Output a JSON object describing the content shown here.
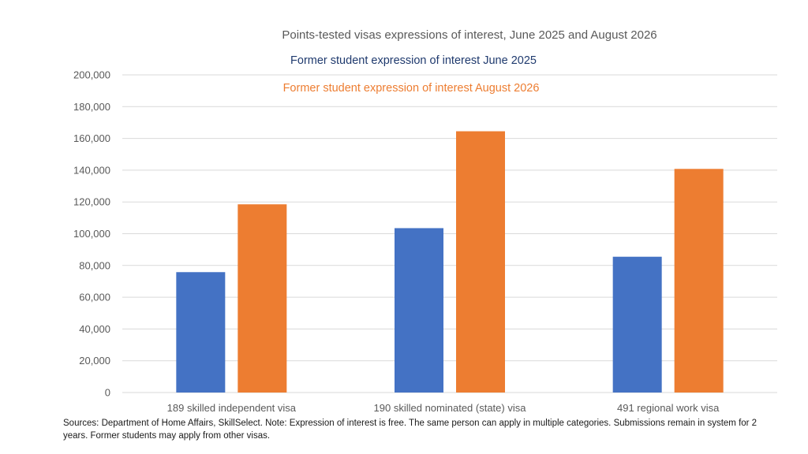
{
  "chart_data": {
    "type": "bar",
    "title": "Points-tested visas expressions of interest, June 2025 and August 2026",
    "categories": [
      "189 skilled independent visa",
      "190 skilled nominated (state) visa",
      "491 regional work visa"
    ],
    "series": [
      {
        "name": "Former student expression of interest June 2025",
        "color": "#4472c4",
        "values": [
          75800,
          103500,
          85500
        ]
      },
      {
        "name": "Former student expression of interest August 2026",
        "color": "#ed7d31",
        "values": [
          118500,
          164500,
          140800
        ]
      }
    ],
    "legend_colors": [
      "#1f3a6e",
      "#ed7d31"
    ],
    "ylim": [
      0,
      200000
    ],
    "yticks": [
      "0",
      "20,000",
      "40,000",
      "60,000",
      "80,000",
      "100,000",
      "120,000",
      "140,000",
      "160,000",
      "180,000",
      "200,000"
    ],
    "xlabel": "",
    "ylabel": "",
    "grid": true,
    "legend_position": "top"
  },
  "footnote": "Sources: Department of Home Affairs, SkillSelect. Note: Expression of interest is free. The same person can apply in multiple categories. Submissions remain in system for 2 years. Former students may apply from other visas."
}
